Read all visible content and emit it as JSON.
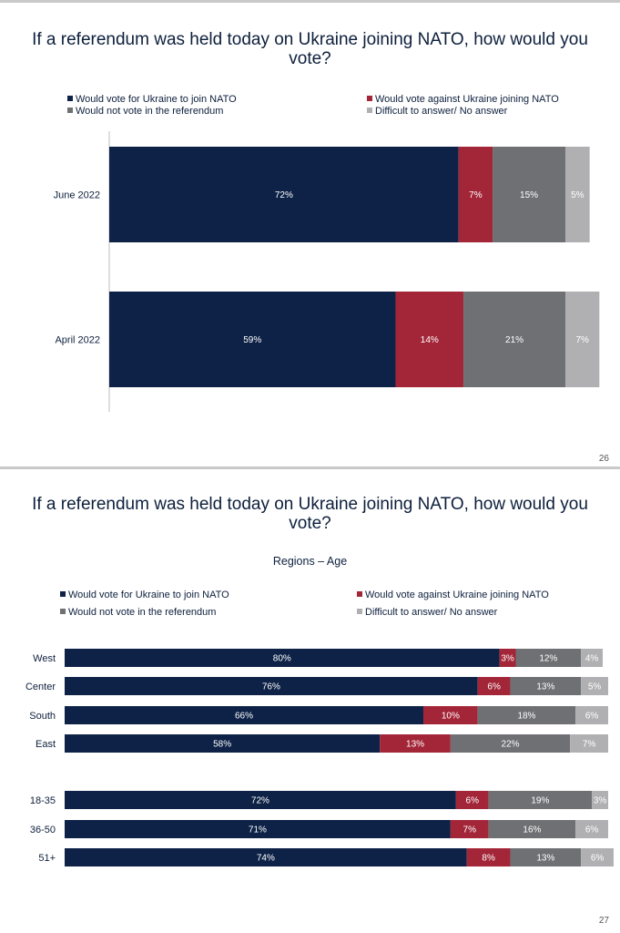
{
  "colors": {
    "for_nato": "#0d2246",
    "against_nato": "#a32638",
    "not_vote": "#6e7073",
    "difficult": "#b0b0b3"
  },
  "slide1": {
    "title_line1": "If a referendum was held today on Ukraine joining NATO, how would you",
    "title_line2": "vote?",
    "page_number": "26",
    "legend": [
      {
        "label": "Would vote for Ukraine to join NATO",
        "color_key": "for_nato"
      },
      {
        "label": "Would vote against Ukraine joining NATO",
        "color_key": "against_nato"
      },
      {
        "label": "Would not vote in the referendum",
        "color_key": "not_vote"
      },
      {
        "label": "Difficult to answer/ No answer",
        "color_key": "difficult"
      }
    ]
  },
  "slide2": {
    "title_line1": "If a referendum was held today on Ukraine joining NATO, how would you",
    "title_line2": "vote?",
    "subtitle": "Regions – Age",
    "page_number": "27",
    "legend": [
      {
        "label": "Would vote for Ukraine to join NATO",
        "color_key": "for_nato"
      },
      {
        "label": "Would vote against Ukraine joining NATO",
        "color_key": "against_nato"
      },
      {
        "label": "Would not vote in the referendum",
        "color_key": "not_vote"
      },
      {
        "label": "Difficult to answer/ No answer",
        "color_key": "difficult"
      }
    ]
  },
  "chart_data": [
    {
      "type": "bar",
      "orientation": "horizontal",
      "stacked": true,
      "title": "If a referendum was held today on Ukraine joining NATO, how would you vote?",
      "categories": [
        "June 2022",
        "April 2022"
      ],
      "series": [
        {
          "name": "Would vote for Ukraine to join NATO",
          "values": [
            72,
            59
          ],
          "labels": [
            "72%",
            "59%"
          ]
        },
        {
          "name": "Would vote against Ukraine joining NATO",
          "values": [
            7,
            14
          ],
          "labels": [
            "7%",
            "14%"
          ]
        },
        {
          "name": "Would not vote in the referendum",
          "values": [
            15,
            21
          ],
          "labels": [
            "15%",
            "21%"
          ]
        },
        {
          "name": "Difficult to answer/ No answer",
          "values": [
            5,
            7
          ],
          "labels": [
            "5%",
            "7%"
          ]
        }
      ],
      "legend_position": "top",
      "grid": false
    },
    {
      "type": "bar",
      "orientation": "horizontal",
      "stacked": true,
      "title": "If a referendum was held today on Ukraine joining NATO, how would you vote?",
      "subtitle": "Regions – Age",
      "categories": [
        "West",
        "Center",
        "South",
        "East",
        "18-35",
        "36-50",
        "51+"
      ],
      "series": [
        {
          "name": "Would vote for Ukraine to join NATO",
          "values": [
            80,
            76,
            66,
            58,
            72,
            71,
            74
          ],
          "labels": [
            "80%",
            "76%",
            "66%",
            "58%",
            "72%",
            "71%",
            "74%"
          ]
        },
        {
          "name": "Would vote against Ukraine joining NATO",
          "values": [
            3,
            6,
            10,
            13,
            6,
            7,
            8
          ],
          "labels": [
            "3%",
            "6%",
            "10%",
            "13%",
            "6%",
            "7%",
            "8%"
          ]
        },
        {
          "name": "Would not vote in the referendum",
          "values": [
            12,
            13,
            18,
            22,
            19,
            16,
            13
          ],
          "labels": [
            "12%",
            "13%",
            "18%",
            "22%",
            "19%",
            "16%",
            "13%"
          ]
        },
        {
          "name": "Difficult to answer/ No answer",
          "values": [
            4,
            5,
            6,
            7,
            3,
            6,
            6
          ],
          "labels": [
            "4%",
            "5%",
            "6%",
            "7%",
            "3%",
            "6%",
            "6%"
          ]
        }
      ],
      "legend_position": "top",
      "grid": false
    }
  ]
}
